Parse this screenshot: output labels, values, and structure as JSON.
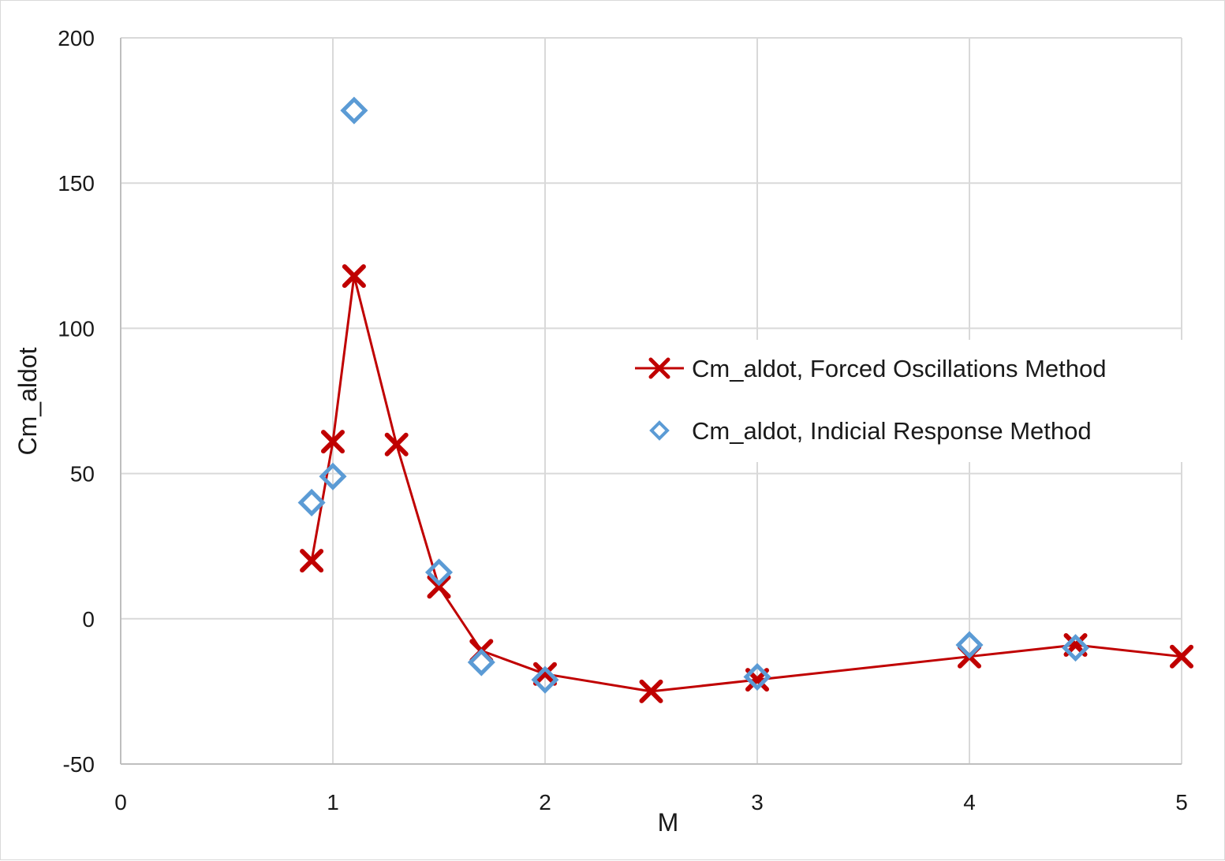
{
  "chart_data": {
    "type": "scatter",
    "title": "",
    "xlabel": "M",
    "ylabel": "Cm_aldot",
    "xlim": [
      0,
      5
    ],
    "ylim": [
      -50,
      200
    ],
    "x_ticks": [
      0,
      1,
      2,
      3,
      4,
      5
    ],
    "y_ticks": [
      -50,
      0,
      50,
      100,
      150,
      200
    ],
    "x_tick_labels": [
      "0",
      "1",
      "2",
      "3",
      "4",
      "5"
    ],
    "y_tick_labels": [
      "-50",
      "0",
      "50",
      "100",
      "150",
      "200"
    ],
    "grid": true,
    "legend_position": "right",
    "series": [
      {
        "name": "Cm_aldot, Forced Oscillations Method",
        "marker": "x",
        "line": true,
        "color": "#c00000",
        "x": [
          0.9,
          1.0,
          1.1,
          1.3,
          1.5,
          1.7,
          2.0,
          2.5,
          3.0,
          4.0,
          4.5,
          5.0
        ],
        "y": [
          20,
          61,
          118,
          60,
          11,
          -11,
          -19,
          -25,
          -21,
          -13,
          -9,
          -13
        ]
      },
      {
        "name": "Cm_aldot, Indicial Response Method",
        "marker": "diamond",
        "line": false,
        "color": "#5b9bd5",
        "x": [
          0.9,
          1.0,
          1.1,
          1.5,
          1.7,
          2.0,
          3.0,
          4.0,
          4.5
        ],
        "y": [
          40,
          49,
          175,
          16,
          -15,
          -21,
          -20,
          -9,
          -10
        ]
      }
    ]
  }
}
